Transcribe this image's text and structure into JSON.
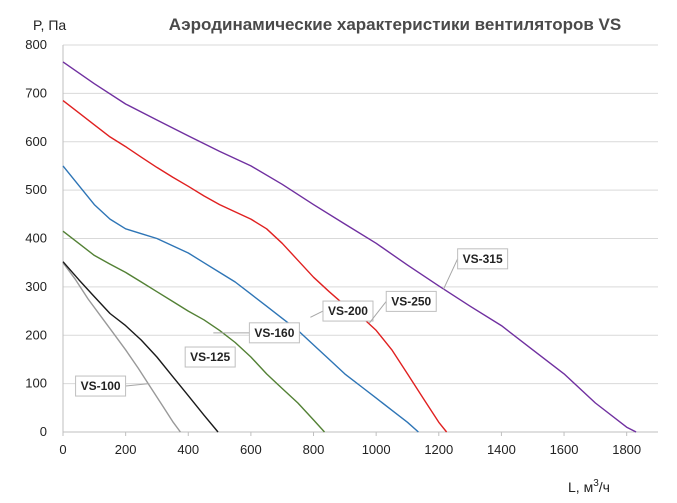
{
  "chart_data": {
    "type": "line",
    "title": "Аэродинамические характеристики вентиляторов VS",
    "ylabel": "P, Па",
    "xlabel": {
      "pre": "L, м",
      "sup": "3",
      "post": "/ч"
    },
    "xlim": [
      0,
      1900
    ],
    "ylim": [
      0,
      800
    ],
    "x_ticks": [
      0,
      200,
      400,
      600,
      800,
      1000,
      1200,
      1400,
      1600,
      1800
    ],
    "y_ticks": [
      0,
      100,
      200,
      300,
      400,
      500,
      600,
      700,
      800
    ],
    "grid": true,
    "series": [
      {
        "name": "VS-100",
        "color": "#999999",
        "x": [
          0,
          40,
          80,
          120,
          160,
          200,
          240,
          280,
          320,
          350,
          375
        ],
        "y": [
          350,
          315,
          275,
          240,
          205,
          170,
          132,
          92,
          52,
          22,
          0
        ],
        "label_x": 275,
        "label_y": 100
      },
      {
        "name": "VS-125",
        "color": "#1a1a1a",
        "x": [
          0,
          50,
          100,
          150,
          200,
          250,
          300,
          350,
          400,
          450,
          495
        ],
        "y": [
          352,
          315,
          280,
          245,
          220,
          190,
          155,
          115,
          75,
          35,
          0
        ],
        "label_x": 410,
        "label_y": 155
      },
      {
        "name": "VS-160",
        "color": "#538135",
        "x": [
          0,
          50,
          100,
          150,
          200,
          250,
          300,
          350,
          400,
          450,
          500,
          550,
          600,
          650,
          700,
          750,
          800,
          835
        ],
        "y": [
          415,
          390,
          365,
          347,
          330,
          310,
          290,
          270,
          250,
          232,
          210,
          185,
          155,
          120,
          90,
          60,
          25,
          0
        ],
        "label_x": 480,
        "label_y": 205
      },
      {
        "name": "VS-200",
        "color": "#2e75b6",
        "x": [
          0,
          50,
          100,
          150,
          200,
          250,
          300,
          350,
          400,
          450,
          500,
          550,
          600,
          650,
          700,
          750,
          800,
          850,
          900,
          950,
          1000,
          1050,
          1100,
          1135
        ],
        "y": [
          550,
          510,
          470,
          440,
          420,
          410,
          400,
          385,
          370,
          350,
          330,
          310,
          285,
          260,
          235,
          210,
          180,
          150,
          120,
          95,
          70,
          45,
          20,
          0
        ],
        "label_x": 790,
        "label_y": 237
      },
      {
        "name": "VS-250",
        "color": "#e02020",
        "x": [
          0,
          50,
          100,
          150,
          200,
          250,
          300,
          350,
          400,
          450,
          500,
          550,
          600,
          650,
          700,
          750,
          800,
          850,
          900,
          950,
          1000,
          1050,
          1100,
          1150,
          1200,
          1225
        ],
        "y": [
          685,
          660,
          635,
          610,
          590,
          568,
          547,
          527,
          508,
          488,
          470,
          455,
          440,
          420,
          390,
          355,
          320,
          290,
          262,
          240,
          210,
          170,
          120,
          70,
          20,
          0
        ],
        "label_x": 978,
        "label_y": 225
      },
      {
        "name": "VS-315",
        "color": "#7030a0",
        "x": [
          0,
          100,
          200,
          300,
          400,
          500,
          600,
          700,
          800,
          900,
          1000,
          1100,
          1200,
          1300,
          1400,
          1500,
          1600,
          1700,
          1800,
          1830
        ],
        "y": [
          765,
          720,
          678,
          645,
          612,
          580,
          550,
          512,
          470,
          430,
          390,
          345,
          302,
          260,
          220,
          170,
          120,
          60,
          10,
          0
        ],
        "label_x": 1215,
        "label_y": 295
      }
    ],
    "label_boxes": [
      {
        "name": "VS-100",
        "x": 120,
        "y": 95
      },
      {
        "name": "VS-125",
        "x": 470,
        "y": 155
      },
      {
        "name": "VS-160",
        "x": 675,
        "y": 205
      },
      {
        "name": "VS-200",
        "x": 910,
        "y": 250
      },
      {
        "name": "VS-250",
        "x": 1112,
        "y": 270
      },
      {
        "name": "VS-315",
        "x": 1340,
        "y": 358
      }
    ]
  }
}
